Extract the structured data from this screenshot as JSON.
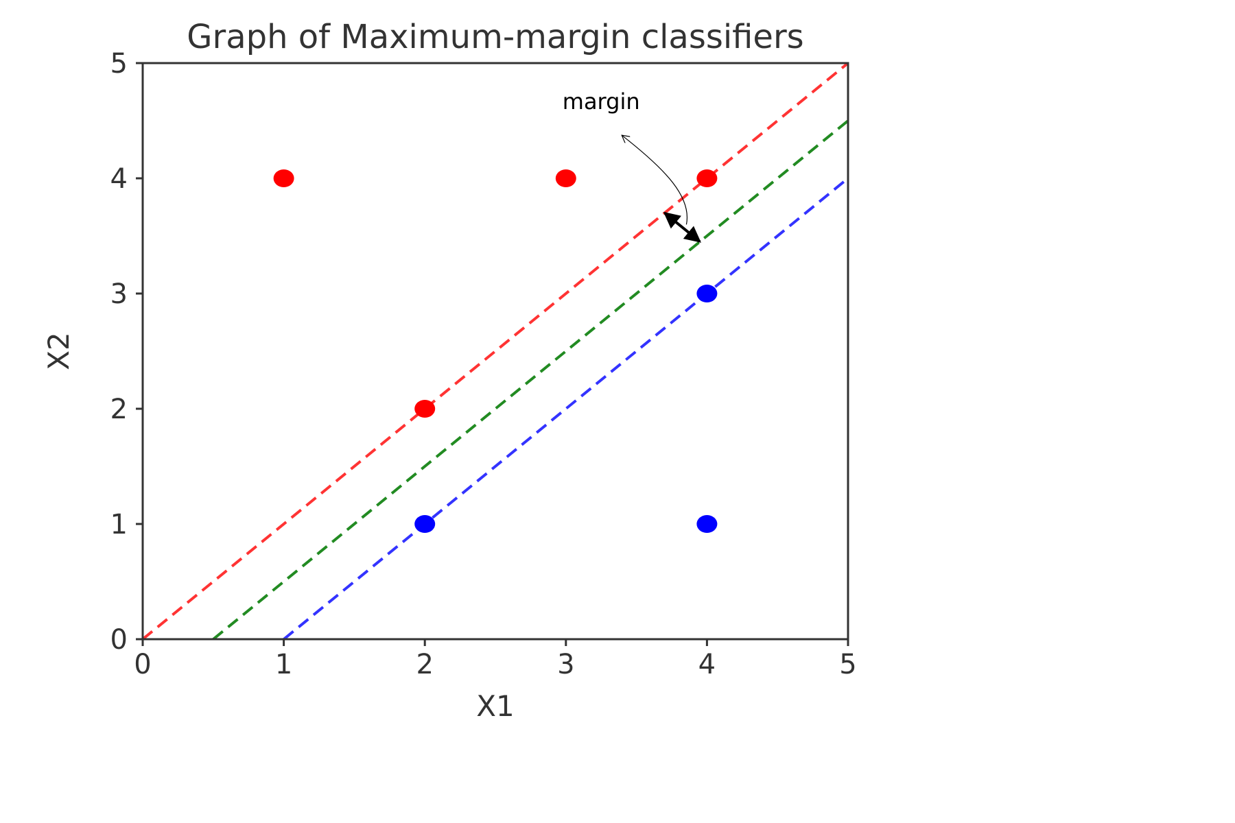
{
  "chart_data": {
    "type": "scatter",
    "title": "Graph of Maximum-margin classifiers",
    "xlabel": "X1",
    "ylabel": "X2",
    "xlim": [
      0,
      5
    ],
    "ylim": [
      0,
      5
    ],
    "xticks": [
      "0",
      "1",
      "2",
      "3",
      "4",
      "5"
    ],
    "yticks": [
      "0",
      "1",
      "2",
      "3",
      "4",
      "5"
    ],
    "grid": false,
    "series": [
      {
        "color": "#ff0000",
        "points": [
          [
            1,
            4
          ],
          [
            3,
            4
          ],
          [
            4,
            4
          ],
          [
            2,
            2
          ]
        ]
      },
      {
        "color": "#0000ff",
        "points": [
          [
            2,
            1
          ],
          [
            4,
            1
          ],
          [
            4,
            3
          ]
        ]
      }
    ],
    "lines": [
      {
        "color": "#ff3333",
        "style": "dashed",
        "from": [
          0,
          0
        ],
        "to": [
          5,
          5
        ]
      },
      {
        "color": "#228b22",
        "style": "dashed",
        "from": [
          0.5,
          0
        ],
        "to": [
          5,
          4.5
        ]
      },
      {
        "color": "#3333ff",
        "style": "dashed",
        "from": [
          1,
          0
        ],
        "to": [
          5,
          4
        ]
      }
    ],
    "annotation": {
      "text": "margin",
      "label_at": [
        3.25,
        4.6
      ],
      "double_arrow": {
        "from": [
          3.7,
          3.7
        ],
        "to": [
          3.95,
          3.45
        ]
      }
    }
  }
}
